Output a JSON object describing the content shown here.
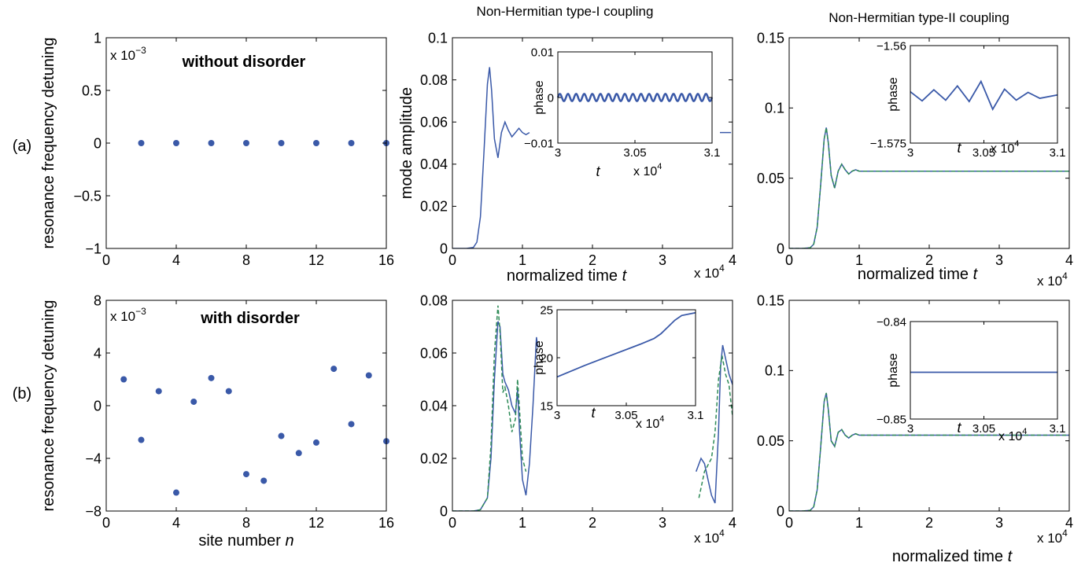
{
  "figure": {
    "column_titles": [
      "Non-Hermitian type-I coupling",
      "Non-Hermitian type-II coupling"
    ],
    "row_labels": [
      "(a)",
      "(b)"
    ]
  },
  "chart_data": [
    {
      "id": "a1",
      "type": "scatter",
      "ylabel": "resonance frequency detuning",
      "xlabel": "",
      "annotation": "without disorder",
      "y_exponent": "x 10^-3",
      "xlim": [
        0,
        16
      ],
      "ylim": [
        -1,
        1
      ],
      "xticks": [
        0,
        4,
        8,
        12,
        16
      ],
      "yticks": [
        -1,
        -0.5,
        0,
        0.5,
        1
      ],
      "ytick_labels": [
        "−1",
        "−0.5",
        "0",
        "0.5",
        "1"
      ],
      "color": "#3a59a8",
      "x": [
        2,
        4,
        6,
        8,
        10,
        12,
        14,
        16
      ],
      "y": [
        0,
        0,
        0,
        0,
        0,
        0,
        0,
        0
      ]
    },
    {
      "id": "a2",
      "type": "line",
      "title": "Non-Hermitian type-I coupling",
      "ylabel": "mode amplitude",
      "xlabel": "normalized time t",
      "x_exponent": "x 10^4",
      "xlim": [
        0,
        4
      ],
      "ylim": [
        0,
        0.1
      ],
      "xticks": [
        0,
        1,
        2,
        3,
        4
      ],
      "yticks": [
        0,
        0.02,
        0.04,
        0.06,
        0.08,
        0.1
      ],
      "series": [
        {
          "color": "#3a59a8",
          "style": "solid",
          "x": [
            0,
            0.2,
            0.3,
            0.35,
            0.4,
            0.45,
            0.5,
            0.53,
            0.56,
            0.6,
            0.65,
            0.7,
            0.75,
            0.8,
            0.85,
            0.9,
            0.95,
            1.0,
            1.05,
            1.1
          ],
          "y": [
            0,
            0,
            0.0005,
            0.003,
            0.015,
            0.045,
            0.078,
            0.086,
            0.075,
            0.052,
            0.043,
            0.055,
            0.06,
            0.056,
            0.053,
            0.055,
            0.057,
            0.055,
            0.054,
            0.055
          ]
        },
        {
          "color": "#3a59a8",
          "style": "solid",
          "x": [
            3.82,
            3.98
          ],
          "y": [
            0.055,
            0.055
          ]
        }
      ],
      "inset": {
        "ylabel": "phase",
        "xlabel": "t",
        "x_exponent": "x 10^4",
        "xlim": [
          3,
          3.1
        ],
        "ylim": [
          -0.01,
          0.01
        ],
        "xticks": [
          3,
          3.05,
          3.1
        ],
        "yticks": [
          -0.01,
          0,
          0.01
        ],
        "ytick_labels": [
          "−0.01",
          "0",
          "0.01"
        ],
        "waves": 19,
        "amplitude": 0.0008
      }
    },
    {
      "id": "a3",
      "type": "line",
      "title": "Non-Hermitian type-II coupling",
      "ylabel": "",
      "xlabel": "normalized time t",
      "x_exponent": "x 10^4",
      "xlim": [
        0,
        4
      ],
      "ylim": [
        0,
        0.15
      ],
      "xticks": [
        0,
        1,
        2,
        3,
        4
      ],
      "yticks": [
        0,
        0.05,
        0.1,
        0.15
      ],
      "series": [
        {
          "color": "#3a59a8",
          "style": "solid",
          "x": [
            0,
            0.2,
            0.3,
            0.35,
            0.4,
            0.45,
            0.5,
            0.53,
            0.56,
            0.6,
            0.65,
            0.7,
            0.75,
            0.8,
            0.85,
            0.9,
            0.95,
            1.0,
            1.1,
            1.3,
            4.0
          ],
          "y": [
            0,
            0,
            0.0005,
            0.003,
            0.015,
            0.045,
            0.078,
            0.086,
            0.075,
            0.052,
            0.043,
            0.055,
            0.06,
            0.056,
            0.053,
            0.055,
            0.056,
            0.055,
            0.055,
            0.055,
            0.055
          ]
        },
        {
          "color": "#2e8b57",
          "style": "dashed",
          "x": [
            0,
            0.2,
            0.3,
            0.35,
            0.4,
            0.45,
            0.5,
            0.53,
            0.56,
            0.6,
            0.65,
            0.7,
            0.75,
            0.8,
            0.85,
            0.9,
            0.95,
            1.0,
            1.1,
            1.3,
            4.0
          ],
          "y": [
            0,
            0,
            0.0005,
            0.003,
            0.015,
            0.045,
            0.078,
            0.086,
            0.075,
            0.052,
            0.043,
            0.055,
            0.06,
            0.056,
            0.053,
            0.055,
            0.056,
            0.055,
            0.055,
            0.055,
            0.055
          ]
        }
      ],
      "inset": {
        "ylabel": "phase",
        "xlabel": "t",
        "x_exponent": "x 10^4",
        "xlim": [
          3,
          3.1
        ],
        "ylim": [
          -1.575,
          -1.56
        ],
        "xticks": [
          3,
          3.05,
          3.1
        ],
        "yticks": [
          -1.575,
          -1.56
        ],
        "ytick_labels": [
          "−1.575",
          "−1.56"
        ],
        "x": [
          3.0,
          3.008,
          3.016,
          3.024,
          3.032,
          3.04,
          3.048,
          3.056,
          3.064,
          3.072,
          3.08,
          3.088,
          3.1
        ],
        "y": [
          -1.5671,
          -1.5685,
          -1.5668,
          -1.5684,
          -1.5662,
          -1.5686,
          -1.5655,
          -1.5698,
          -1.5667,
          -1.5684,
          -1.5672,
          -1.5681,
          -1.5676
        ]
      }
    },
    {
      "id": "b1",
      "type": "scatter",
      "ylabel": "resonance frequency detuning",
      "xlabel": "site number n",
      "annotation": "with disorder",
      "y_exponent": "x 10^-3",
      "xlim": [
        0,
        16
      ],
      "ylim": [
        -8,
        8
      ],
      "xticks": [
        0,
        4,
        8,
        12,
        16
      ],
      "yticks": [
        -8,
        -4,
        0,
        4,
        8
      ],
      "ytick_labels": [
        "−8",
        "−4",
        "0",
        "4",
        "8"
      ],
      "color": "#3a59a8",
      "x": [
        1,
        2,
        3,
        4,
        5,
        6,
        7,
        8,
        9,
        10,
        11,
        12,
        13,
        14,
        15,
        16
      ],
      "y": [
        2.0,
        -2.6,
        1.1,
        -6.6,
        0.3,
        2.1,
        1.1,
        -5.2,
        -5.7,
        -2.3,
        -3.6,
        -2.8,
        2.8,
        -1.4,
        2.3,
        -2.7
      ]
    },
    {
      "id": "b2",
      "type": "line",
      "ylabel": "",
      "xlabel": "",
      "x_exponent": "x 10^4",
      "xlim": [
        0,
        4
      ],
      "ylim": [
        0,
        0.08
      ],
      "xticks": [
        0,
        1,
        2,
        3,
        4
      ],
      "yticks": [
        0,
        0.02,
        0.04,
        0.06,
        0.08
      ],
      "series": [
        {
          "color": "#3a59a8",
          "style": "solid",
          "x": [
            0,
            0.3,
            0.4,
            0.5,
            0.55,
            0.6,
            0.65,
            0.68,
            0.72,
            0.75,
            0.8,
            0.85,
            0.9,
            0.93,
            0.96,
            1.0,
            1.05,
            1.1,
            1.15,
            1.2,
            1.22
          ],
          "y": [
            0,
            0,
            0.0005,
            0.005,
            0.02,
            0.05,
            0.072,
            0.07,
            0.052,
            0.049,
            0.046,
            0.04,
            0.037,
            0.046,
            0.03,
            0.012,
            0.006,
            0.018,
            0.04,
            0.066,
            0.062
          ]
        },
        {
          "color": "#3a59a8",
          "style": "solid",
          "x": [
            3.48,
            3.55,
            3.6,
            3.65,
            3.7,
            3.75,
            3.8,
            3.83,
            3.86,
            3.9,
            3.95,
            4.0
          ],
          "y": [
            0.015,
            0.02,
            0.018,
            0.012,
            0.006,
            0.003,
            0.03,
            0.055,
            0.063,
            0.058,
            0.052,
            0.048
          ]
        },
        {
          "color": "#2e8b57",
          "style": "dashed",
          "x": [
            0,
            0.3,
            0.4,
            0.5,
            0.55,
            0.6,
            0.65,
            0.68,
            0.72,
            0.75,
            0.8,
            0.85,
            0.9,
            0.93,
            0.96,
            1.0,
            1.05
          ],
          "y": [
            0,
            0,
            0.0005,
            0.005,
            0.025,
            0.06,
            0.078,
            0.068,
            0.045,
            0.047,
            0.04,
            0.03,
            0.035,
            0.05,
            0.038,
            0.02,
            0.015
          ]
        },
        {
          "color": "#2e8b57",
          "style": "dashed",
          "x": [
            3.52,
            3.6,
            3.7,
            3.75,
            3.8,
            3.85,
            3.9,
            3.95,
            4.0
          ],
          "y": [
            0.005,
            0.015,
            0.02,
            0.03,
            0.05,
            0.059,
            0.052,
            0.048,
            0.036
          ]
        }
      ],
      "inset": {
        "ylabel": "phase",
        "xlabel": "t",
        "x_exponent": "x 10^4",
        "xlim": [
          3,
          3.1
        ],
        "ylim": [
          15,
          25
        ],
        "xticks": [
          3,
          3.05,
          3.1
        ],
        "yticks": [
          15,
          20,
          25
        ],
        "ytick_labels": [
          "15",
          "20",
          "25"
        ],
        "x": [
          3.0,
          3.02,
          3.04,
          3.06,
          3.07,
          3.075,
          3.08,
          3.085,
          3.09,
          3.1
        ],
        "y": [
          18.0,
          19.2,
          20.3,
          21.4,
          22.0,
          22.5,
          23.2,
          23.9,
          24.4,
          24.7
        ]
      }
    },
    {
      "id": "b3",
      "type": "line",
      "ylabel": "",
      "xlabel": "normalized time t",
      "x_exponent": "x 10^4",
      "xlim": [
        0,
        4
      ],
      "ylim": [
        0,
        0.15
      ],
      "xticks": [
        0,
        1,
        2,
        3,
        4
      ],
      "yticks": [
        0,
        0.05,
        0.1,
        0.15
      ],
      "series": [
        {
          "color": "#3a59a8",
          "style": "solid",
          "x": [
            0,
            0.2,
            0.3,
            0.35,
            0.4,
            0.45,
            0.5,
            0.53,
            0.56,
            0.6,
            0.65,
            0.7,
            0.75,
            0.8,
            0.85,
            0.9,
            0.95,
            1.0,
            1.1,
            1.3,
            4.0
          ],
          "y": [
            0,
            0,
            0.0005,
            0.003,
            0.015,
            0.045,
            0.078,
            0.084,
            0.072,
            0.05,
            0.046,
            0.056,
            0.058,
            0.054,
            0.052,
            0.054,
            0.055,
            0.054,
            0.054,
            0.054,
            0.054
          ]
        },
        {
          "color": "#2e8b57",
          "style": "dashed",
          "x": [
            0,
            0.2,
            0.3,
            0.35,
            0.4,
            0.45,
            0.5,
            0.53,
            0.56,
            0.6,
            0.65,
            0.7,
            0.75,
            0.8,
            0.85,
            0.9,
            0.95,
            1.0,
            1.1,
            1.3,
            4.0
          ],
          "y": [
            0,
            0,
            0.0005,
            0.003,
            0.015,
            0.045,
            0.078,
            0.084,
            0.072,
            0.05,
            0.046,
            0.056,
            0.058,
            0.054,
            0.052,
            0.054,
            0.055,
            0.054,
            0.054,
            0.054,
            0.054
          ]
        }
      ],
      "inset": {
        "ylabel": "phase",
        "xlabel": "t",
        "x_exponent": "x 10^4",
        "xlim": [
          3,
          3.1
        ],
        "ylim": [
          -0.85,
          -0.84
        ],
        "xticks": [
          3,
          3.05,
          3.1
        ],
        "yticks": [
          -0.85,
          -0.84
        ],
        "ytick_labels": [
          "−0.85",
          "−0.84"
        ],
        "x": [
          3.0,
          3.1
        ],
        "y": [
          -0.8452,
          -0.8452
        ]
      }
    }
  ]
}
